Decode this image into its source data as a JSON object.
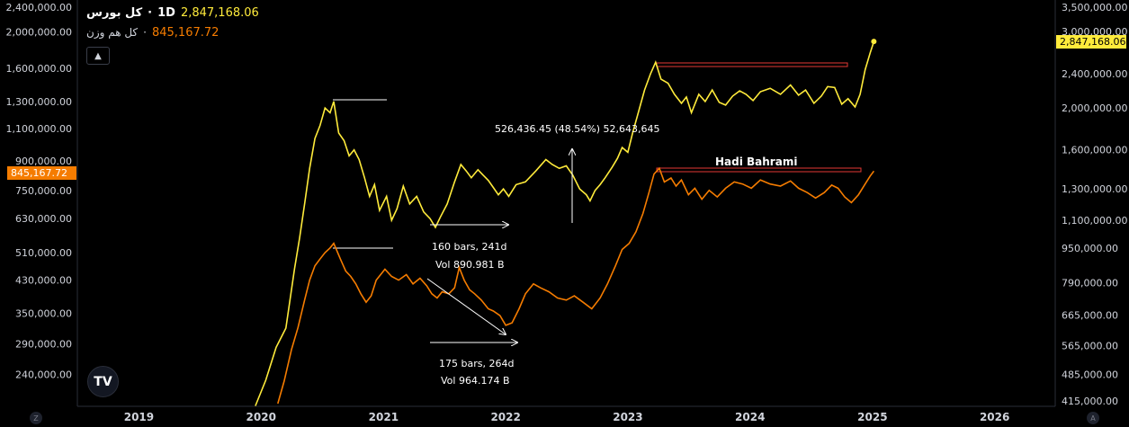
{
  "legend": {
    "main_name": "کل بورس",
    "interval": "1D",
    "main_value": "2,847,168.06",
    "second_name": "کل هم وزن",
    "second_value": "845,167.72",
    "collapse_icon": "chevron-up-icon"
  },
  "colors": {
    "main": "#ffeb3b",
    "second": "#f57c00",
    "background": "#000000",
    "level": "#e53935"
  },
  "chart_data": {
    "type": "line",
    "x_range": [
      "2018-07-01",
      "2026-07-01"
    ],
    "x_ticks": [
      "2019",
      "2020",
      "2021",
      "2022",
      "2023",
      "2024",
      "2025",
      "2026"
    ],
    "left_axis": {
      "scale": "log",
      "range": [
        200000,
        2400000
      ],
      "ticks": [
        "2,400,000.00",
        "2,000,000.00",
        "1,600,000.00",
        "1,300,000.00",
        "1,100,000.00",
        "900,000.00",
        "750,000.00",
        "630,000.00",
        "510,000.00",
        "430,000.00",
        "350,000.00",
        "290,000.00",
        "240,000.00"
      ],
      "last_value_label": "845,167.72"
    },
    "right_axis": {
      "scale": "log",
      "range": [
        415000,
        3500000
      ],
      "ticks": [
        "3,500,000.00",
        "3,000,000.00",
        "2,400,000.00",
        "2,000,000.00",
        "1,600,000.00",
        "1,300,000.00",
        "1,100,000.00",
        "950,000.00",
        "790,000.00",
        "665,000.00",
        "565,000.00",
        "485,000.00",
        "415,000.00"
      ],
      "last_value_label": "2,847,168.06"
    },
    "series": [
      {
        "name": "کل بورس",
        "axis": "right",
        "points": [
          [
            "2019-12-15",
            410000
          ],
          [
            "2020-01-15",
            470000
          ],
          [
            "2020-02-15",
            560000
          ],
          [
            "2020-03-15",
            620000
          ],
          [
            "2020-04-10",
            850000
          ],
          [
            "2020-04-25",
            1000000
          ],
          [
            "2020-05-10",
            1200000
          ],
          [
            "2020-05-25",
            1450000
          ],
          [
            "2020-06-10",
            1700000
          ],
          [
            "2020-06-25",
            1820000
          ],
          [
            "2020-07-10",
            2000000
          ],
          [
            "2020-07-25",
            1950000
          ],
          [
            "2020-08-05",
            2070000
          ],
          [
            "2020-08-20",
            1750000
          ],
          [
            "2020-09-05",
            1680000
          ],
          [
            "2020-09-20",
            1550000
          ],
          [
            "2020-10-05",
            1600000
          ],
          [
            "2020-10-20",
            1520000
          ],
          [
            "2020-11-05",
            1380000
          ],
          [
            "2020-11-20",
            1250000
          ],
          [
            "2020-12-05",
            1330000
          ],
          [
            "2020-12-20",
            1160000
          ],
          [
            "2021-01-10",
            1250000
          ],
          [
            "2021-01-25",
            1100000
          ],
          [
            "2021-02-10",
            1170000
          ],
          [
            "2021-03-01",
            1320000
          ],
          [
            "2021-03-20",
            1200000
          ],
          [
            "2021-04-10",
            1250000
          ],
          [
            "2021-05-01",
            1150000
          ],
          [
            "2021-05-20",
            1110000
          ],
          [
            "2021-06-05",
            1060000
          ],
          [
            "2021-06-20",
            1120000
          ],
          [
            "2021-07-10",
            1200000
          ],
          [
            "2021-08-01",
            1350000
          ],
          [
            "2021-08-20",
            1480000
          ],
          [
            "2021-09-05",
            1430000
          ],
          [
            "2021-09-20",
            1380000
          ],
          [
            "2021-10-10",
            1440000
          ],
          [
            "2021-10-25",
            1400000
          ],
          [
            "2021-11-10",
            1360000
          ],
          [
            "2021-11-25",
            1310000
          ],
          [
            "2021-12-10",
            1260000
          ],
          [
            "2021-12-25",
            1300000
          ],
          [
            "2022-01-10",
            1250000
          ],
          [
            "2022-02-01",
            1330000
          ],
          [
            "2022-03-01",
            1350000
          ],
          [
            "2022-04-01",
            1430000
          ],
          [
            "2022-05-01",
            1520000
          ],
          [
            "2022-05-20",
            1480000
          ],
          [
            "2022-06-10",
            1450000
          ],
          [
            "2022-07-01",
            1470000
          ],
          [
            "2022-07-20",
            1400000
          ],
          [
            "2022-08-10",
            1300000
          ],
          [
            "2022-08-30",
            1260000
          ],
          [
            "2022-09-10",
            1220000
          ],
          [
            "2022-09-25",
            1290000
          ],
          [
            "2022-10-10",
            1330000
          ],
          [
            "2022-10-25",
            1380000
          ],
          [
            "2022-11-15",
            1460000
          ],
          [
            "2022-12-01",
            1530000
          ],
          [
            "2022-12-15",
            1620000
          ],
          [
            "2023-01-01",
            1580000
          ],
          [
            "2023-01-15",
            1750000
          ],
          [
            "2023-02-01",
            1950000
          ],
          [
            "2023-02-20",
            2200000
          ],
          [
            "2023-03-10",
            2400000
          ],
          [
            "2023-03-25",
            2550000
          ],
          [
            "2023-04-10",
            2330000
          ],
          [
            "2023-05-01",
            2280000
          ],
          [
            "2023-05-20",
            2150000
          ],
          [
            "2023-06-10",
            2050000
          ],
          [
            "2023-06-25",
            2120000
          ],
          [
            "2023-07-10",
            1950000
          ],
          [
            "2023-08-01",
            2150000
          ],
          [
            "2023-08-20",
            2070000
          ],
          [
            "2023-09-10",
            2200000
          ],
          [
            "2023-10-01",
            2060000
          ],
          [
            "2023-10-20",
            2030000
          ],
          [
            "2023-11-10",
            2130000
          ],
          [
            "2023-12-01",
            2190000
          ],
          [
            "2023-12-20",
            2150000
          ],
          [
            "2024-01-10",
            2080000
          ],
          [
            "2024-02-01",
            2180000
          ],
          [
            "2024-03-01",
            2220000
          ],
          [
            "2024-04-01",
            2150000
          ],
          [
            "2024-05-01",
            2260000
          ],
          [
            "2024-05-25",
            2140000
          ],
          [
            "2024-06-15",
            2200000
          ],
          [
            "2024-07-10",
            2050000
          ],
          [
            "2024-08-01",
            2130000
          ],
          [
            "2024-08-20",
            2240000
          ],
          [
            "2024-09-10",
            2230000
          ],
          [
            "2024-10-01",
            2040000
          ],
          [
            "2024-10-20",
            2100000
          ],
          [
            "2024-11-10",
            2010000
          ],
          [
            "2024-11-25",
            2150000
          ],
          [
            "2024-12-10",
            2450000
          ],
          [
            "2024-12-25",
            2680000
          ],
          [
            "2025-01-05",
            2847168.06
          ]
        ]
      },
      {
        "name": "کل هم وزن",
        "axis": "left",
        "points": [
          [
            "2020-02-20",
            200000
          ],
          [
            "2020-03-10",
            230000
          ],
          [
            "2020-04-01",
            280000
          ],
          [
            "2020-04-20",
            320000
          ],
          [
            "2020-05-10",
            380000
          ],
          [
            "2020-05-25",
            430000
          ],
          [
            "2020-06-10",
            470000
          ],
          [
            "2020-06-25",
            490000
          ],
          [
            "2020-07-10",
            510000
          ],
          [
            "2020-07-25",
            525000
          ],
          [
            "2020-08-05",
            540000
          ],
          [
            "2020-08-25",
            490000
          ],
          [
            "2020-09-10",
            455000
          ],
          [
            "2020-09-25",
            440000
          ],
          [
            "2020-10-10",
            420000
          ],
          [
            "2020-10-25",
            395000
          ],
          [
            "2020-11-10",
            375000
          ],
          [
            "2020-11-25",
            390000
          ],
          [
            "2020-12-10",
            430000
          ],
          [
            "2021-01-05",
            460000
          ],
          [
            "2021-01-25",
            440000
          ],
          [
            "2021-02-15",
            430000
          ],
          [
            "2021-03-10",
            445000
          ],
          [
            "2021-03-30",
            420000
          ],
          [
            "2021-04-20",
            435000
          ],
          [
            "2021-05-10",
            415000
          ],
          [
            "2021-05-25",
            395000
          ],
          [
            "2021-06-10",
            385000
          ],
          [
            "2021-06-25",
            400000
          ],
          [
            "2021-07-15",
            395000
          ],
          [
            "2021-08-01",
            410000
          ],
          [
            "2021-08-15",
            465000
          ],
          [
            "2021-08-30",
            430000
          ],
          [
            "2021-09-15",
            405000
          ],
          [
            "2021-09-30",
            395000
          ],
          [
            "2021-10-20",
            380000
          ],
          [
            "2021-11-10",
            360000
          ],
          [
            "2021-11-25",
            355000
          ],
          [
            "2021-12-15",
            345000
          ],
          [
            "2022-01-01",
            325000
          ],
          [
            "2022-01-20",
            330000
          ],
          [
            "2022-02-10",
            360000
          ],
          [
            "2022-03-01",
            395000
          ],
          [
            "2022-03-25",
            420000
          ],
          [
            "2022-04-15",
            410000
          ],
          [
            "2022-05-10",
            400000
          ],
          [
            "2022-06-05",
            385000
          ],
          [
            "2022-07-01",
            380000
          ],
          [
            "2022-07-25",
            390000
          ],
          [
            "2022-08-20",
            375000
          ],
          [
            "2022-09-15",
            360000
          ],
          [
            "2022-10-10",
            385000
          ],
          [
            "2022-11-01",
            420000
          ],
          [
            "2022-11-25",
            470000
          ],
          [
            "2022-12-15",
            520000
          ],
          [
            "2023-01-05",
            540000
          ],
          [
            "2023-01-25",
            580000
          ],
          [
            "2023-02-15",
            650000
          ],
          [
            "2023-03-05",
            740000
          ],
          [
            "2023-03-20",
            830000
          ],
          [
            "2023-04-05",
            860000
          ],
          [
            "2023-04-20",
            790000
          ],
          [
            "2023-05-10",
            810000
          ],
          [
            "2023-05-25",
            770000
          ],
          [
            "2023-06-10",
            800000
          ],
          [
            "2023-07-01",
            730000
          ],
          [
            "2023-07-20",
            760000
          ],
          [
            "2023-08-10",
            710000
          ],
          [
            "2023-09-01",
            750000
          ],
          [
            "2023-09-25",
            720000
          ],
          [
            "2023-10-20",
            760000
          ],
          [
            "2023-11-15",
            790000
          ],
          [
            "2023-12-10",
            780000
          ],
          [
            "2024-01-05",
            760000
          ],
          [
            "2024-02-01",
            800000
          ],
          [
            "2024-03-01",
            780000
          ],
          [
            "2024-04-01",
            770000
          ],
          [
            "2024-05-01",
            795000
          ],
          [
            "2024-05-25",
            760000
          ],
          [
            "2024-06-20",
            740000
          ],
          [
            "2024-07-15",
            715000
          ],
          [
            "2024-08-10",
            740000
          ],
          [
            "2024-09-01",
            775000
          ],
          [
            "2024-09-20",
            760000
          ],
          [
            "2024-10-10",
            720000
          ],
          [
            "2024-10-30",
            695000
          ],
          [
            "2024-11-20",
            730000
          ],
          [
            "2024-12-10",
            780000
          ],
          [
            "2024-12-25",
            820000
          ],
          [
            "2025-01-05",
            845167.72
          ]
        ]
      }
    ],
    "annotations": {
      "watermark": "Hadi Bahrami",
      "measure_top": "526,436.45 (48.54%) 52,643,645",
      "range_top_bars": "160 bars, 241d",
      "range_top_vol": "Vol 890.981 B",
      "range_bottom_bars": "175 bars, 264d",
      "range_bottom_vol": "Vol 964.174 B"
    }
  },
  "footer": {
    "left_button": "Z",
    "right_button": "A"
  },
  "logo": "TV"
}
